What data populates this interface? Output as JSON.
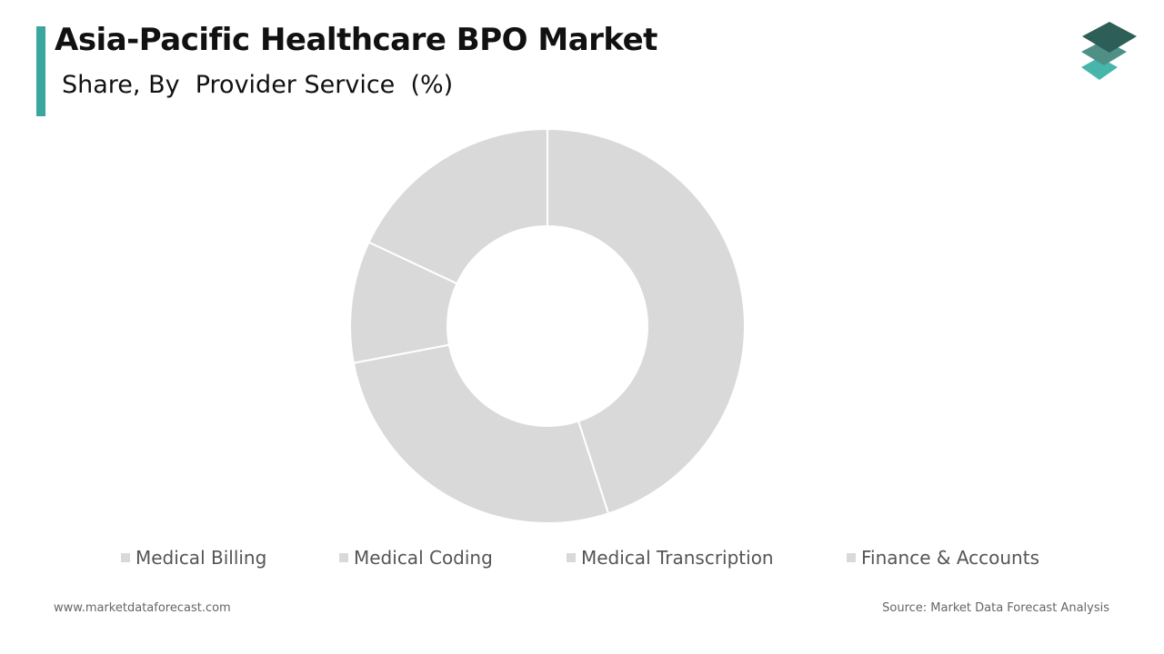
{
  "header": {
    "title": "Asia-Pacific Healthcare BPO Market",
    "subtitle": "Share, By  Provider Service  (%)"
  },
  "colors": {
    "accent": "#3aa6a0",
    "slice": "#d9d9d9",
    "legend_swatch": "#d9d9d9",
    "logo_top": "#2e5e58",
    "logo_mid": "#4f8f86",
    "logo_bottom": "#48b5aa"
  },
  "chart_data": {
    "type": "pie",
    "variant": "donut",
    "categories": [
      "Medical Billing",
      "Medical Coding",
      "Medical Transcription",
      "Finance & Accounts"
    ],
    "values": [
      45,
      27,
      10,
      18
    ],
    "units": "%",
    "legend_position": "bottom"
  },
  "footer": {
    "website": "www.marketdataforecast.com",
    "source": "Source: Market Data Forecast Analysis"
  },
  "icons": {
    "logo": "stacked-layers-logo-icon"
  }
}
